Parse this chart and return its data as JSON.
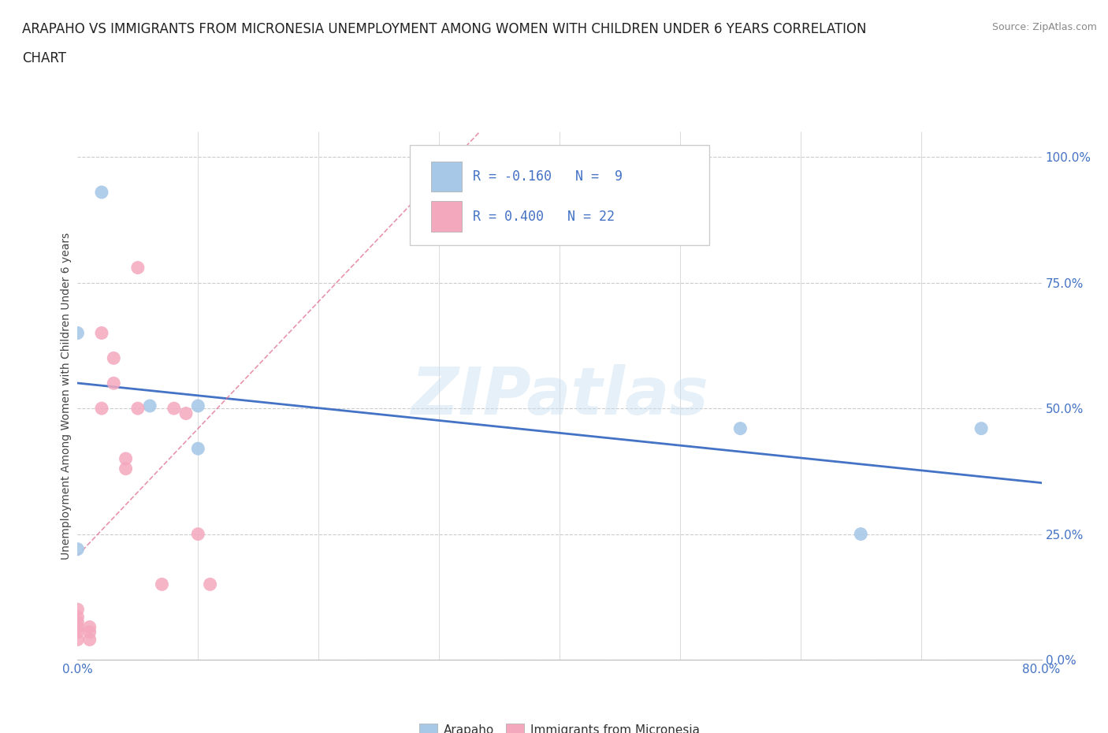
{
  "title_line1": "ARAPAHO VS IMMIGRANTS FROM MICRONESIA UNEMPLOYMENT AMONG WOMEN WITH CHILDREN UNDER 6 YEARS CORRELATION",
  "title_line2": "CHART",
  "source": "Source: ZipAtlas.com",
  "ylabel": "Unemployment Among Women with Children Under 6 years",
  "xlim": [
    0.0,
    0.8
  ],
  "ylim": [
    0.0,
    1.05
  ],
  "yticks": [
    0.0,
    0.25,
    0.5,
    0.75,
    1.0
  ],
  "ytick_labels": [
    "0.0%",
    "25.0%",
    "50.0%",
    "75.0%",
    "100.0%"
  ],
  "xticks_minor": [
    0.0,
    0.1,
    0.2,
    0.3,
    0.4,
    0.5,
    0.6,
    0.7,
    0.8
  ],
  "watermark": "ZIPatlas",
  "arapaho_points": [
    [
      0.02,
      0.93
    ],
    [
      0.0,
      0.65
    ],
    [
      0.06,
      0.505
    ],
    [
      0.1,
      0.505
    ],
    [
      0.1,
      0.42
    ],
    [
      0.0,
      0.22
    ],
    [
      0.55,
      0.46
    ],
    [
      0.65,
      0.25
    ],
    [
      0.75,
      0.46
    ]
  ],
  "micronesia_points": [
    [
      0.0,
      0.04
    ],
    [
      0.0,
      0.055
    ],
    [
      0.0,
      0.065
    ],
    [
      0.0,
      0.075
    ],
    [
      0.0,
      0.085
    ],
    [
      0.0,
      0.1
    ],
    [
      0.01,
      0.04
    ],
    [
      0.01,
      0.055
    ],
    [
      0.01,
      0.065
    ],
    [
      0.02,
      0.5
    ],
    [
      0.02,
      0.65
    ],
    [
      0.03,
      0.6
    ],
    [
      0.03,
      0.55
    ],
    [
      0.04,
      0.38
    ],
    [
      0.04,
      0.4
    ],
    [
      0.05,
      0.5
    ],
    [
      0.05,
      0.78
    ],
    [
      0.07,
      0.15
    ],
    [
      0.08,
      0.5
    ],
    [
      0.09,
      0.49
    ],
    [
      0.1,
      0.25
    ],
    [
      0.11,
      0.15
    ]
  ],
  "arapaho_color": "#A8C8E8",
  "micronesia_color": "#F4A8BE",
  "arapaho_line_color": "#4472C4",
  "micronesia_line_color": "#E07090",
  "arapaho_R": -0.16,
  "arapaho_N": 9,
  "micronesia_R": 0.4,
  "micronesia_N": 22,
  "marker_size": 150,
  "grid_color": "#CCCCCC",
  "background_color": "#FFFFFF",
  "title_fontsize": 12,
  "tick_color": "#4472C4",
  "tick_fontsize": 11
}
